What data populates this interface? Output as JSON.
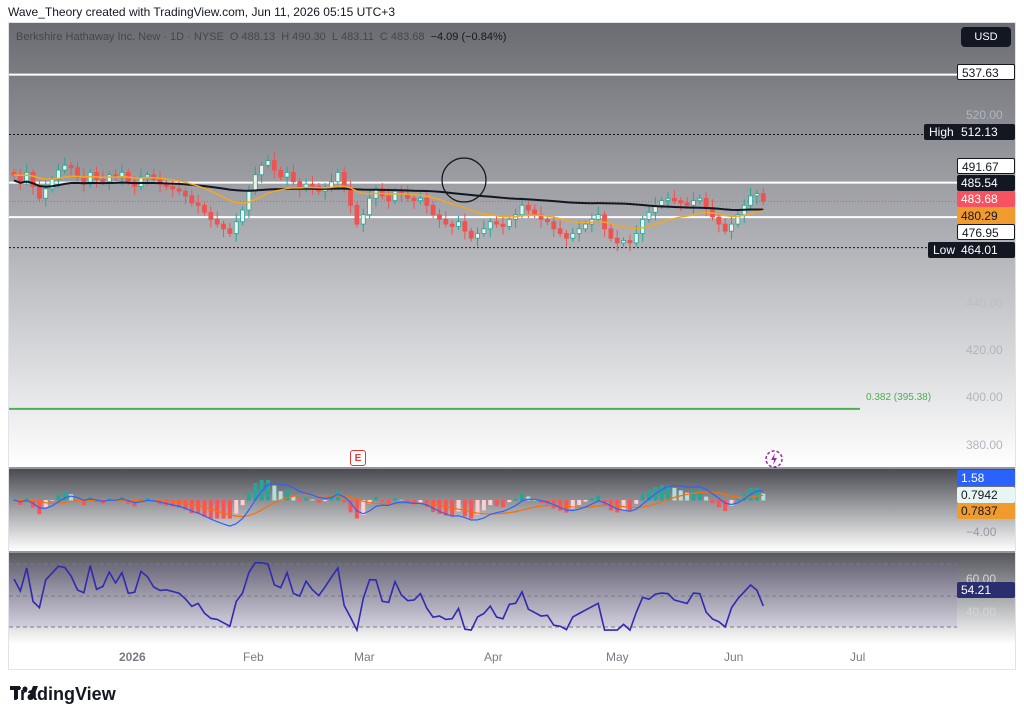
{
  "header": {
    "watermark_text": "Wave_Theory created with TradingView.com, Jun 11, 2026 05:15 UTC+3"
  },
  "legend": {
    "symbol": "Berkshire Hathaway Inc. New · 1D · NYSE",
    "o_label": "O",
    "o": "488.13",
    "h_label": "H",
    "h": "490.30",
    "l_label": "L",
    "l": "483.11",
    "c_label": "C",
    "c": "483.68",
    "change": "−4.09 (−0.84%)"
  },
  "currency": "USD",
  "price_axis": {
    "ticks": [
      "520.00",
      "440.00",
      "420.00",
      "400.00",
      "380.00"
    ],
    "high_label": "High",
    "high_value": "512.13",
    "low_label": "Low",
    "low_value": "464.01",
    "tag_537": "537.63",
    "tag_491": "491.67",
    "tag_485": "485.54",
    "tag_483": "483.68",
    "tag_480": "480.29",
    "tag_476": "476.95"
  },
  "fib": {
    "label": "0.382 (395.38)"
  },
  "macd": {
    "v1": "1.58",
    "v2": "0.7942",
    "v3": "0.7837",
    "tick": "−4.00"
  },
  "rsi": {
    "v1": "54.21",
    "tick_top": "60.00",
    "tick_bottom": "40.00"
  },
  "x_axis": {
    "labels": [
      "2026",
      "Feb",
      "Mar",
      "Apr",
      "May",
      "Jun",
      "Jul"
    ]
  },
  "events": {
    "earnings_glyph": "E"
  },
  "footer": {
    "brand": "TradingView"
  },
  "colors": {
    "up": "#26a69a",
    "down": "#ef5350",
    "ema_orange": "#f5a623",
    "ma_black": "#131722",
    "fib_green": "#4caf50",
    "rsi": "#2f2ab0",
    "macd_blue": "#2962ff",
    "macd_signal": "#ff6d00"
  },
  "chart_data": {
    "type": "candlestick",
    "price_range": [
      370,
      545
    ],
    "closes": [
      495,
      492,
      496,
      490,
      485,
      489,
      493,
      497,
      499,
      498,
      494,
      491,
      496,
      493,
      492,
      495,
      494,
      496,
      492,
      490,
      494,
      495,
      493,
      491,
      490,
      489,
      488,
      486,
      483,
      482,
      479,
      476,
      474,
      472,
      470,
      475,
      480,
      488,
      495,
      499,
      501,
      497,
      494,
      496,
      492,
      489,
      491,
      490,
      488,
      489,
      492,
      496,
      489,
      482,
      474,
      478,
      485,
      489,
      486,
      484,
      488,
      487,
      485,
      484,
      485,
      482,
      478,
      476,
      474,
      473,
      475,
      471,
      468,
      470,
      472,
      475,
      474,
      473,
      476,
      478,
      482,
      480,
      478,
      476,
      475,
      472,
      470,
      468,
      470,
      472,
      474,
      476,
      478,
      472,
      468,
      466,
      467,
      466,
      470,
      476,
      479,
      482,
      484,
      485,
      484,
      483,
      482,
      484,
      485,
      481,
      477,
      474,
      471,
      474,
      478,
      482,
      486,
      487,
      483.68
    ],
    "resistance_levels": [
      537.63,
      512.13,
      491.67,
      485.54,
      476.95,
      464.01
    ],
    "fib_level": 395.38
  }
}
